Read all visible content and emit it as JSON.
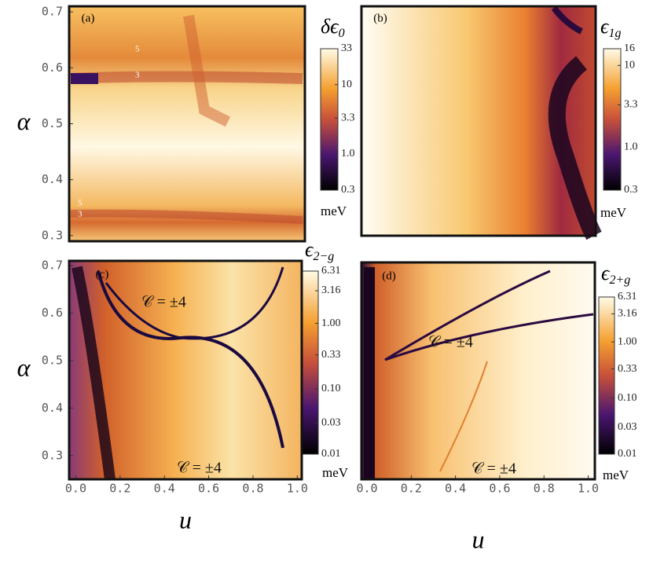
{
  "chart_data": [
    {
      "type": "heatmap",
      "panel_label": "(a)",
      "y_label": "α",
      "ylim": [
        0.29,
        0.71
      ],
      "yticks": [
        0.3,
        0.4,
        0.5,
        0.6,
        0.7
      ],
      "colorbar_symbol": "δϵ",
      "colorbar_subscript": "0",
      "colorbar_unit": "meV",
      "color_scale": "log",
      "clim": [
        0.3,
        33
      ],
      "cticks": [
        0.3,
        {
          "value": 1,
          "label": "1.0"
        },
        3.3,
        10,
        33
      ],
      "annotations": [
        "5",
        "3",
        "5",
        "3"
      ]
    },
    {
      "type": "heatmap",
      "panel_label": "(b)",
      "colorbar_symbol": "ϵ",
      "colorbar_subscript": "1g",
      "colorbar_unit": "meV",
      "color_scale": "log",
      "clim": [
        0.3,
        16
      ],
      "cticks": [
        0.3,
        {
          "value": 1,
          "label": "1.0"
        },
        3.3,
        10,
        16
      ],
      "annotations": []
    },
    {
      "type": "heatmap",
      "panel_label": "(c)",
      "x_label": "u",
      "y_label": "α",
      "xlim": [
        -0.03,
        1.02
      ],
      "ylim": [
        0.25,
        0.71
      ],
      "xticks": [
        {
          "value": 0,
          "label": "0.0"
        },
        0.2,
        0.4,
        0.6,
        0.8,
        {
          "value": 1,
          "label": "1.0"
        }
      ],
      "yticks": [
        0.3,
        0.4,
        0.5,
        0.6,
        0.7
      ],
      "colorbar_symbol": "ϵ",
      "colorbar_subscript": "2−g",
      "colorbar_unit": "meV",
      "color_scale": "log",
      "clim": [
        0.01,
        6.31
      ],
      "cticks": [
        0.01,
        0.03,
        {
          "value": 0.1,
          "label": "0.10"
        },
        0.33,
        {
          "value": 1,
          "label": "1.00"
        },
        3.16,
        6.31
      ],
      "annotations": [
        "𝒞 = ±4",
        "𝒞 = ±4"
      ]
    },
    {
      "type": "heatmap",
      "panel_label": "(d)",
      "x_label": "u",
      "xlim": [
        -0.025,
        1.03
      ],
      "xticks": [
        {
          "value": 0,
          "label": "0.0"
        },
        0.2,
        0.4,
        0.6,
        0.8,
        {
          "value": 1,
          "label": "1.0"
        }
      ],
      "colorbar_symbol": "ϵ",
      "colorbar_subscript": "2+g",
      "colorbar_unit": "meV",
      "color_scale": "log",
      "clim": [
        0.01,
        6.31
      ],
      "cticks": [
        0.01,
        0.03,
        {
          "value": 0.1,
          "label": "0.10"
        },
        0.33,
        {
          "value": 1,
          "label": "1.00"
        },
        3.16,
        6.31
      ],
      "annotations": [
        "𝒞 = ±4",
        "𝒞 = ±4"
      ]
    }
  ]
}
